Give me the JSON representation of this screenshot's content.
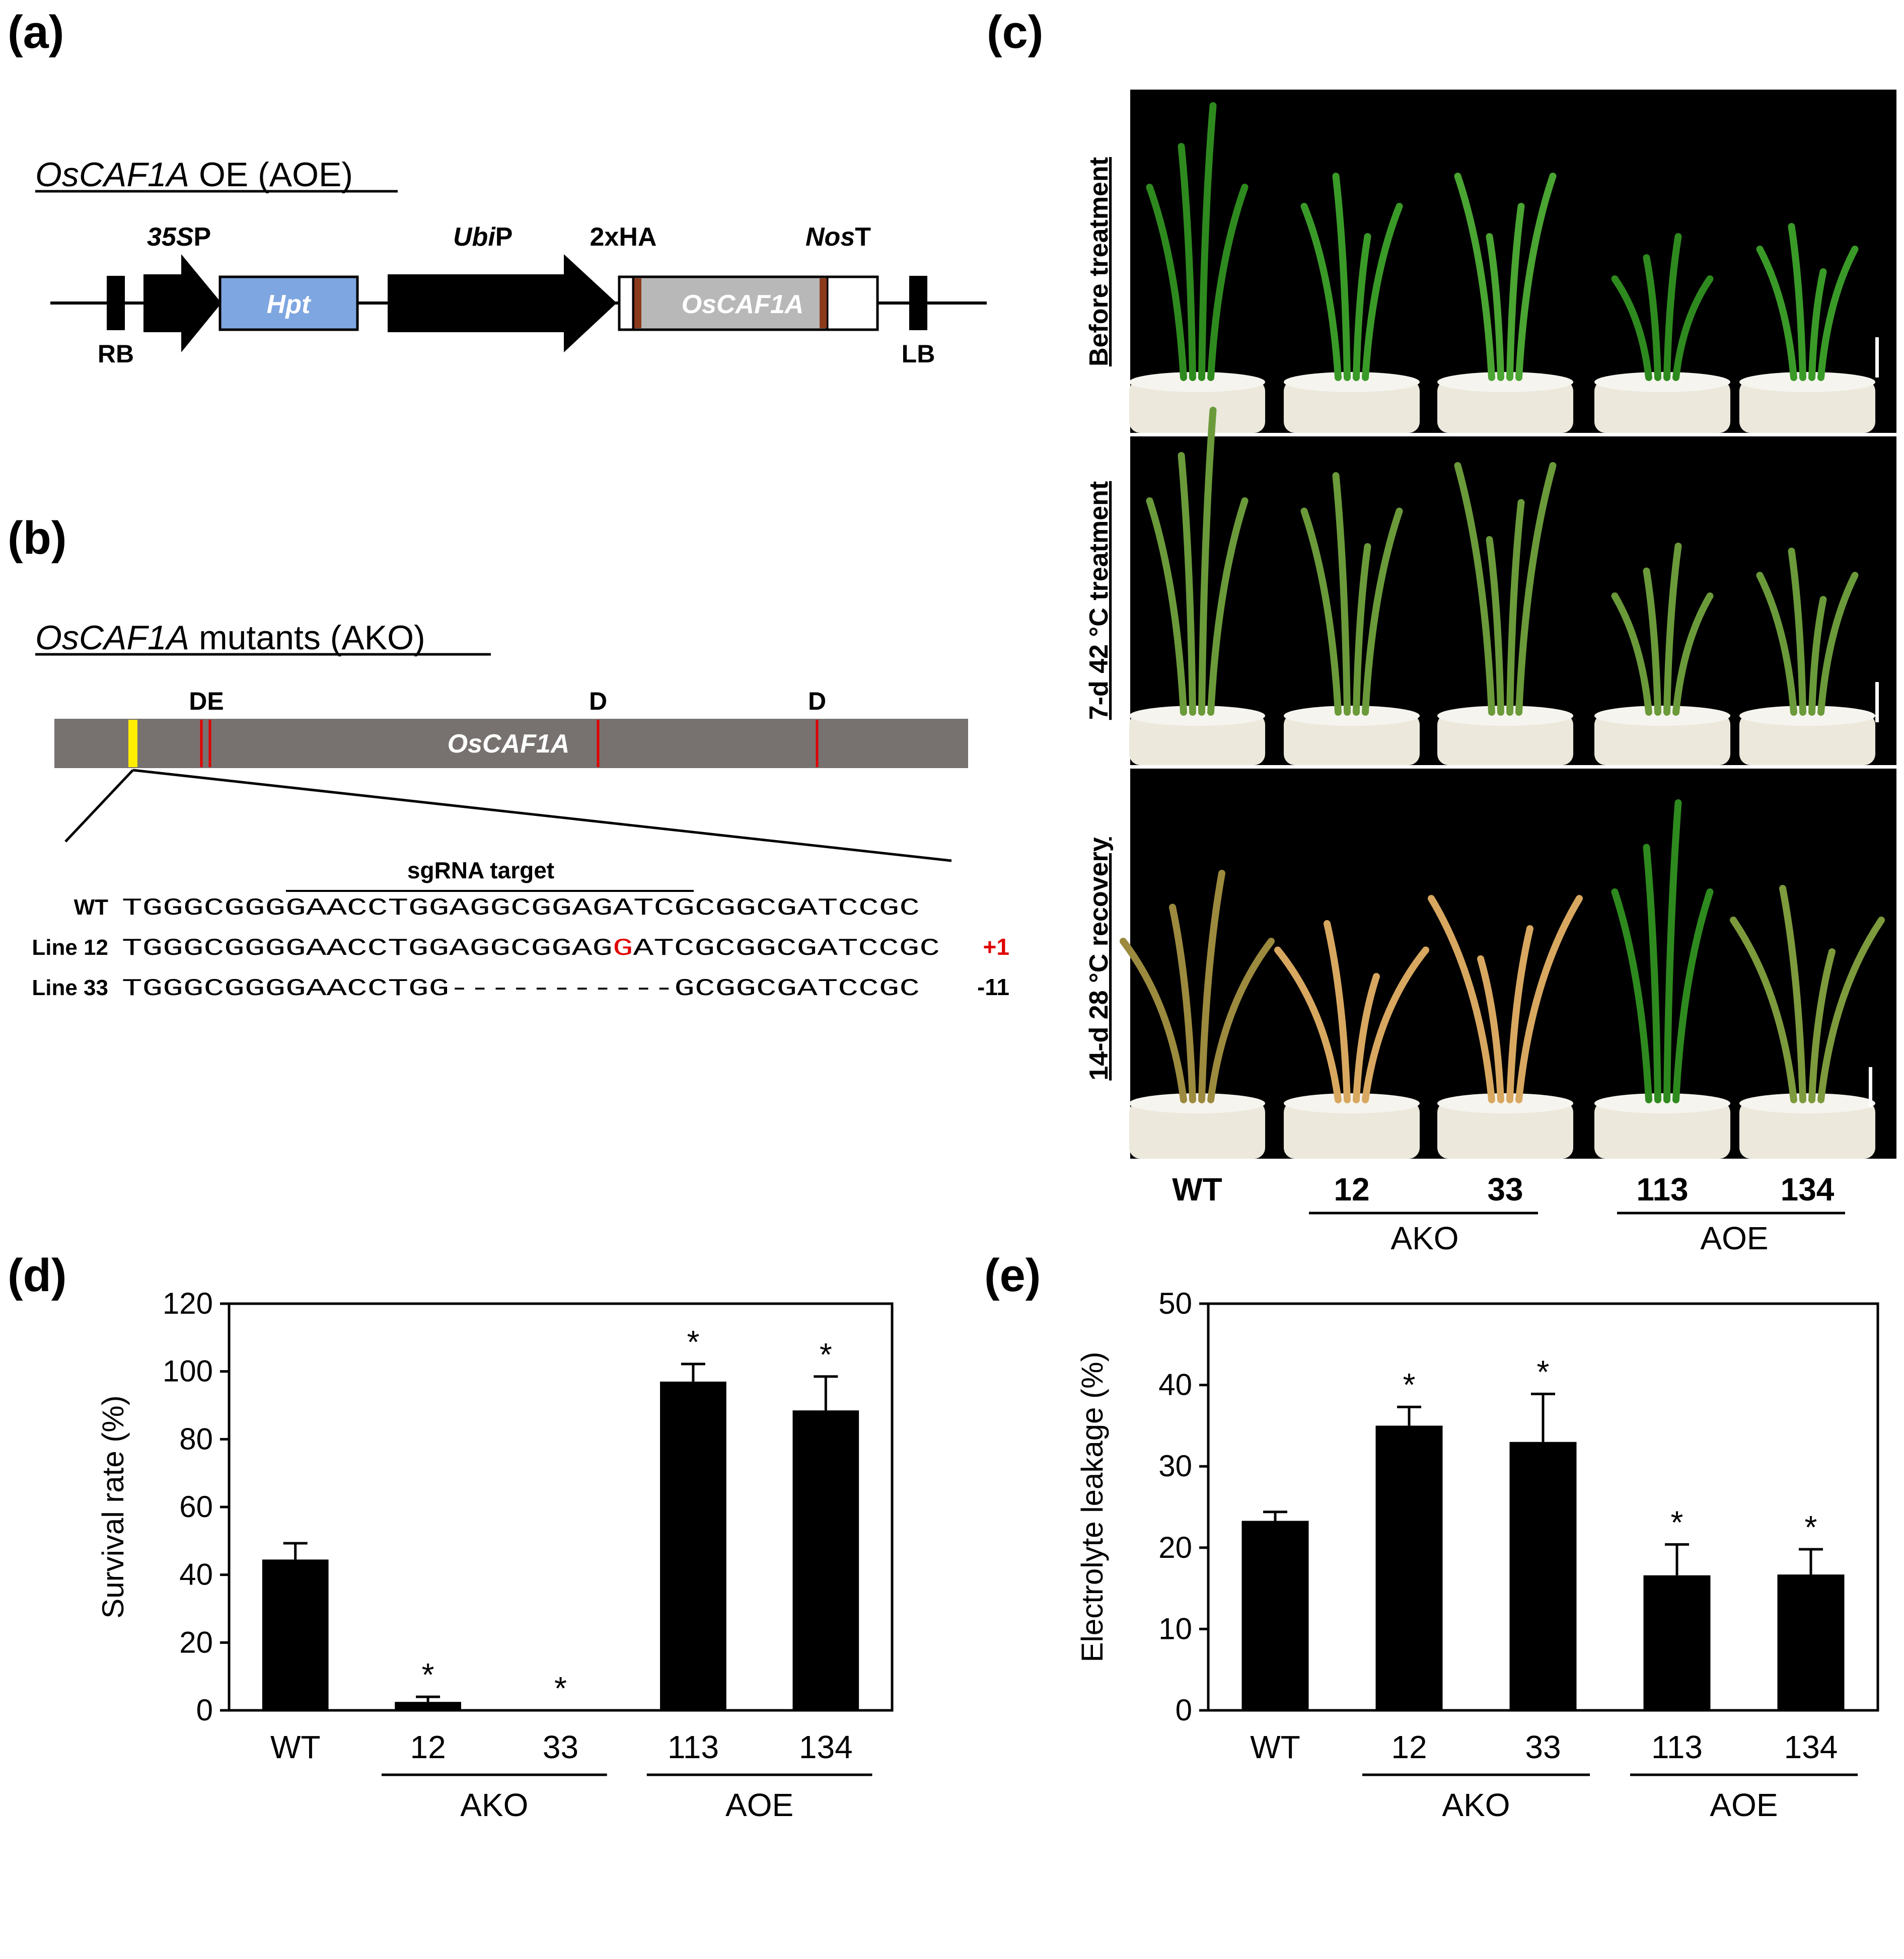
{
  "panel_labels": {
    "a": "(a)",
    "b": "(b)",
    "c": "(c)",
    "d": "(d)",
    "e": "(e)"
  },
  "construct": {
    "title_italic": "OsCAF1A",
    "title_rest": " OE (AOE)",
    "promoter1_italic": "35S",
    "promoter1_rest": "P",
    "marker": "Hpt",
    "promoter2_italic": "Ubi",
    "promoter2_rest": "P",
    "tag": "2xHA",
    "terminator_italic": "Nos",
    "terminator_rest": "T",
    "gene": "OsCAF1A",
    "left_border": "RB",
    "right_border": "LB",
    "colors": {
      "hpt": "#7ea6e0",
      "gene": "#b8b8b8",
      "ha": "#8b3a1a"
    }
  },
  "mutants": {
    "title_italic": "OsCAF1A",
    "title_rest": " mutants (AKO)",
    "gene": "OsCAF1A",
    "sites": [
      "DE",
      "D",
      "D"
    ],
    "target_label": "sgRNA target",
    "gene_color": "#777270",
    "sequences": [
      {
        "line": "WT",
        "seq": "TGGGCGGGGAACCTGGAGGCGGAGATCGCGGCGATCCGC",
        "change": ""
      },
      {
        "line": "Line 12",
        "seq_a": "TGGGCGGGGAACCTGGAGGCGGAG",
        "insert": "G",
        "seq_b": "ATCGCGGCGATCCGC",
        "change": "+1"
      },
      {
        "line": "Line 33",
        "seq": "TGGGCGGGGAACCTGG-----------GCGGCGATCCGC",
        "change": "-11"
      }
    ]
  },
  "photos": {
    "row_labels": [
      "Before treatment",
      "7-d 42 °C treatment",
      "14-d 28 °C recovery"
    ],
    "genotypes": [
      "WT",
      "12",
      "33",
      "113",
      "134"
    ],
    "groups": [
      "AKO",
      "AOE"
    ]
  },
  "chart_data": [
    {
      "type": "bar",
      "panel": "d",
      "categories": [
        "WT",
        "12",
        "33",
        "113",
        "134"
      ],
      "groups": [
        {
          "name": "AKO",
          "categories": [
            "12",
            "33"
          ]
        },
        {
          "name": "AOE",
          "categories": [
            "113",
            "134"
          ]
        }
      ],
      "values": [
        44.5,
        2.5,
        0,
        97,
        88.5
      ],
      "errors": [
        4.8,
        1.5,
        0,
        5.2,
        10
      ],
      "significant": [
        false,
        true,
        true,
        true,
        true
      ],
      "ylabel": "Survival rate (%)",
      "ylim": [
        0,
        120
      ],
      "yticks": [
        0,
        20,
        40,
        60,
        80,
        100,
        120
      ]
    },
    {
      "type": "bar",
      "panel": "e",
      "categories": [
        "WT",
        "12",
        "33",
        "113",
        "134"
      ],
      "groups": [
        {
          "name": "AKO",
          "categories": [
            "12",
            "33"
          ]
        },
        {
          "name": "AOE",
          "categories": [
            "113",
            "134"
          ]
        }
      ],
      "values": [
        23.3,
        35,
        33,
        16.6,
        16.7
      ],
      "errors": [
        1.1,
        2.3,
        5.9,
        3.8,
        3.1
      ],
      "significant": [
        false,
        true,
        true,
        true,
        true
      ],
      "ylabel": "Electrolyte leakage (%)",
      "ylim": [
        0,
        50
      ],
      "yticks": [
        0,
        10,
        20,
        30,
        40,
        50
      ]
    }
  ]
}
